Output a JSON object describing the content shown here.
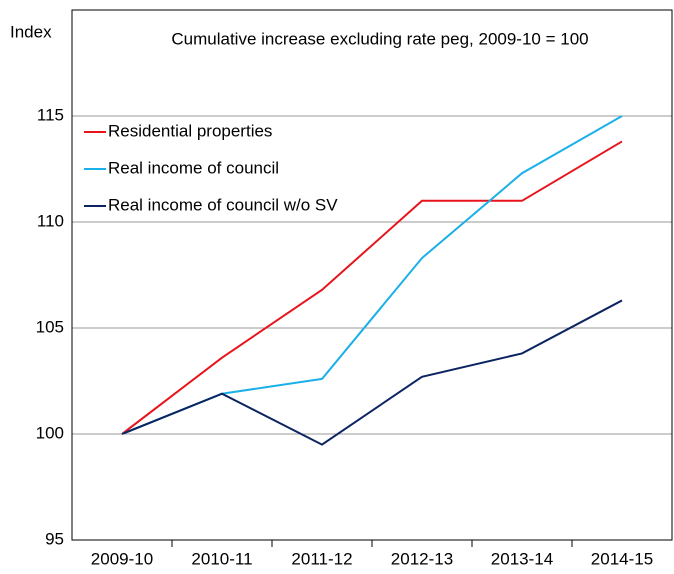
{
  "chart_data": {
    "type": "line",
    "title": "Cumulative increase excluding rate peg, 2009-10 = 100",
    "y_label": "Index",
    "categories": [
      "2009-10",
      "2010-11",
      "2011-12",
      "2012-13",
      "2013-14",
      "2014-15"
    ],
    "series": [
      {
        "name": "Residential properties",
        "color": "#e8141c",
        "values": [
          100,
          103.6,
          106.8,
          111,
          111,
          113.8
        ]
      },
      {
        "name": "Real income of council",
        "color": "#1ab0e8",
        "values": [
          100,
          101.9,
          102.6,
          108.3,
          112.3,
          115
        ]
      },
      {
        "name": "Real income of council w/o SV",
        "color": "#0c2461",
        "values": [
          100,
          101.9,
          99.5,
          102.7,
          103.8,
          106.3
        ]
      }
    ],
    "ylim": [
      95,
      120
    ],
    "yticks": [
      95,
      100,
      105,
      110,
      115
    ],
    "grid": true,
    "legend": "upper left"
  }
}
